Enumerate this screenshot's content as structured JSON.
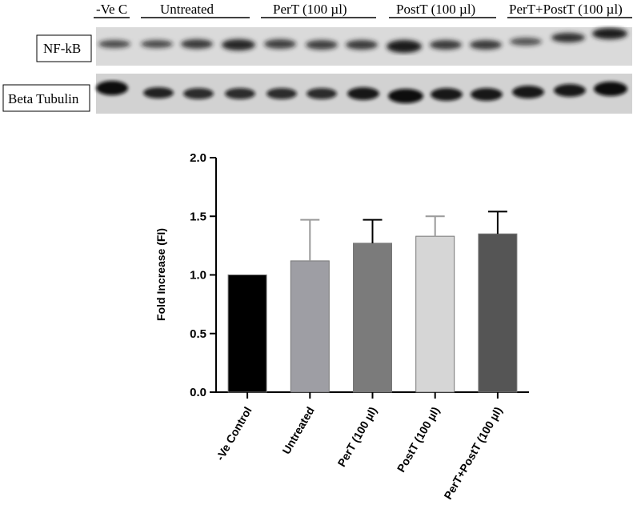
{
  "blot": {
    "groups": [
      "-Ve C",
      "Untreated",
      "PerT (100 µl)",
      "PostT (100 µl)",
      "PerT+PostT (100 µl)"
    ],
    "rows": [
      "NF-kB",
      "Beta Tubulin"
    ]
  },
  "chart_data": {
    "type": "bar",
    "categories": [
      "-Ve Control",
      "Untreated",
      "PerT (100 µl)",
      "PostT (100 µl)",
      "PerT+PostT (100 µl)"
    ],
    "values": [
      1.0,
      1.12,
      1.27,
      1.33,
      1.35
    ],
    "errors": [
      0.0,
      0.35,
      0.2,
      0.17,
      0.19
    ],
    "colors": [
      "#000000",
      "#9e9ea4",
      "#7b7b7b",
      "#d6d6d6",
      "#555555"
    ],
    "title": "",
    "xlabel": "",
    "ylabel": "Fold Increase (FI)",
    "ylim": [
      0,
      2.0
    ],
    "yticks": [
      "0.0",
      "0.5",
      "1.0",
      "1.5",
      "2.0"
    ]
  }
}
